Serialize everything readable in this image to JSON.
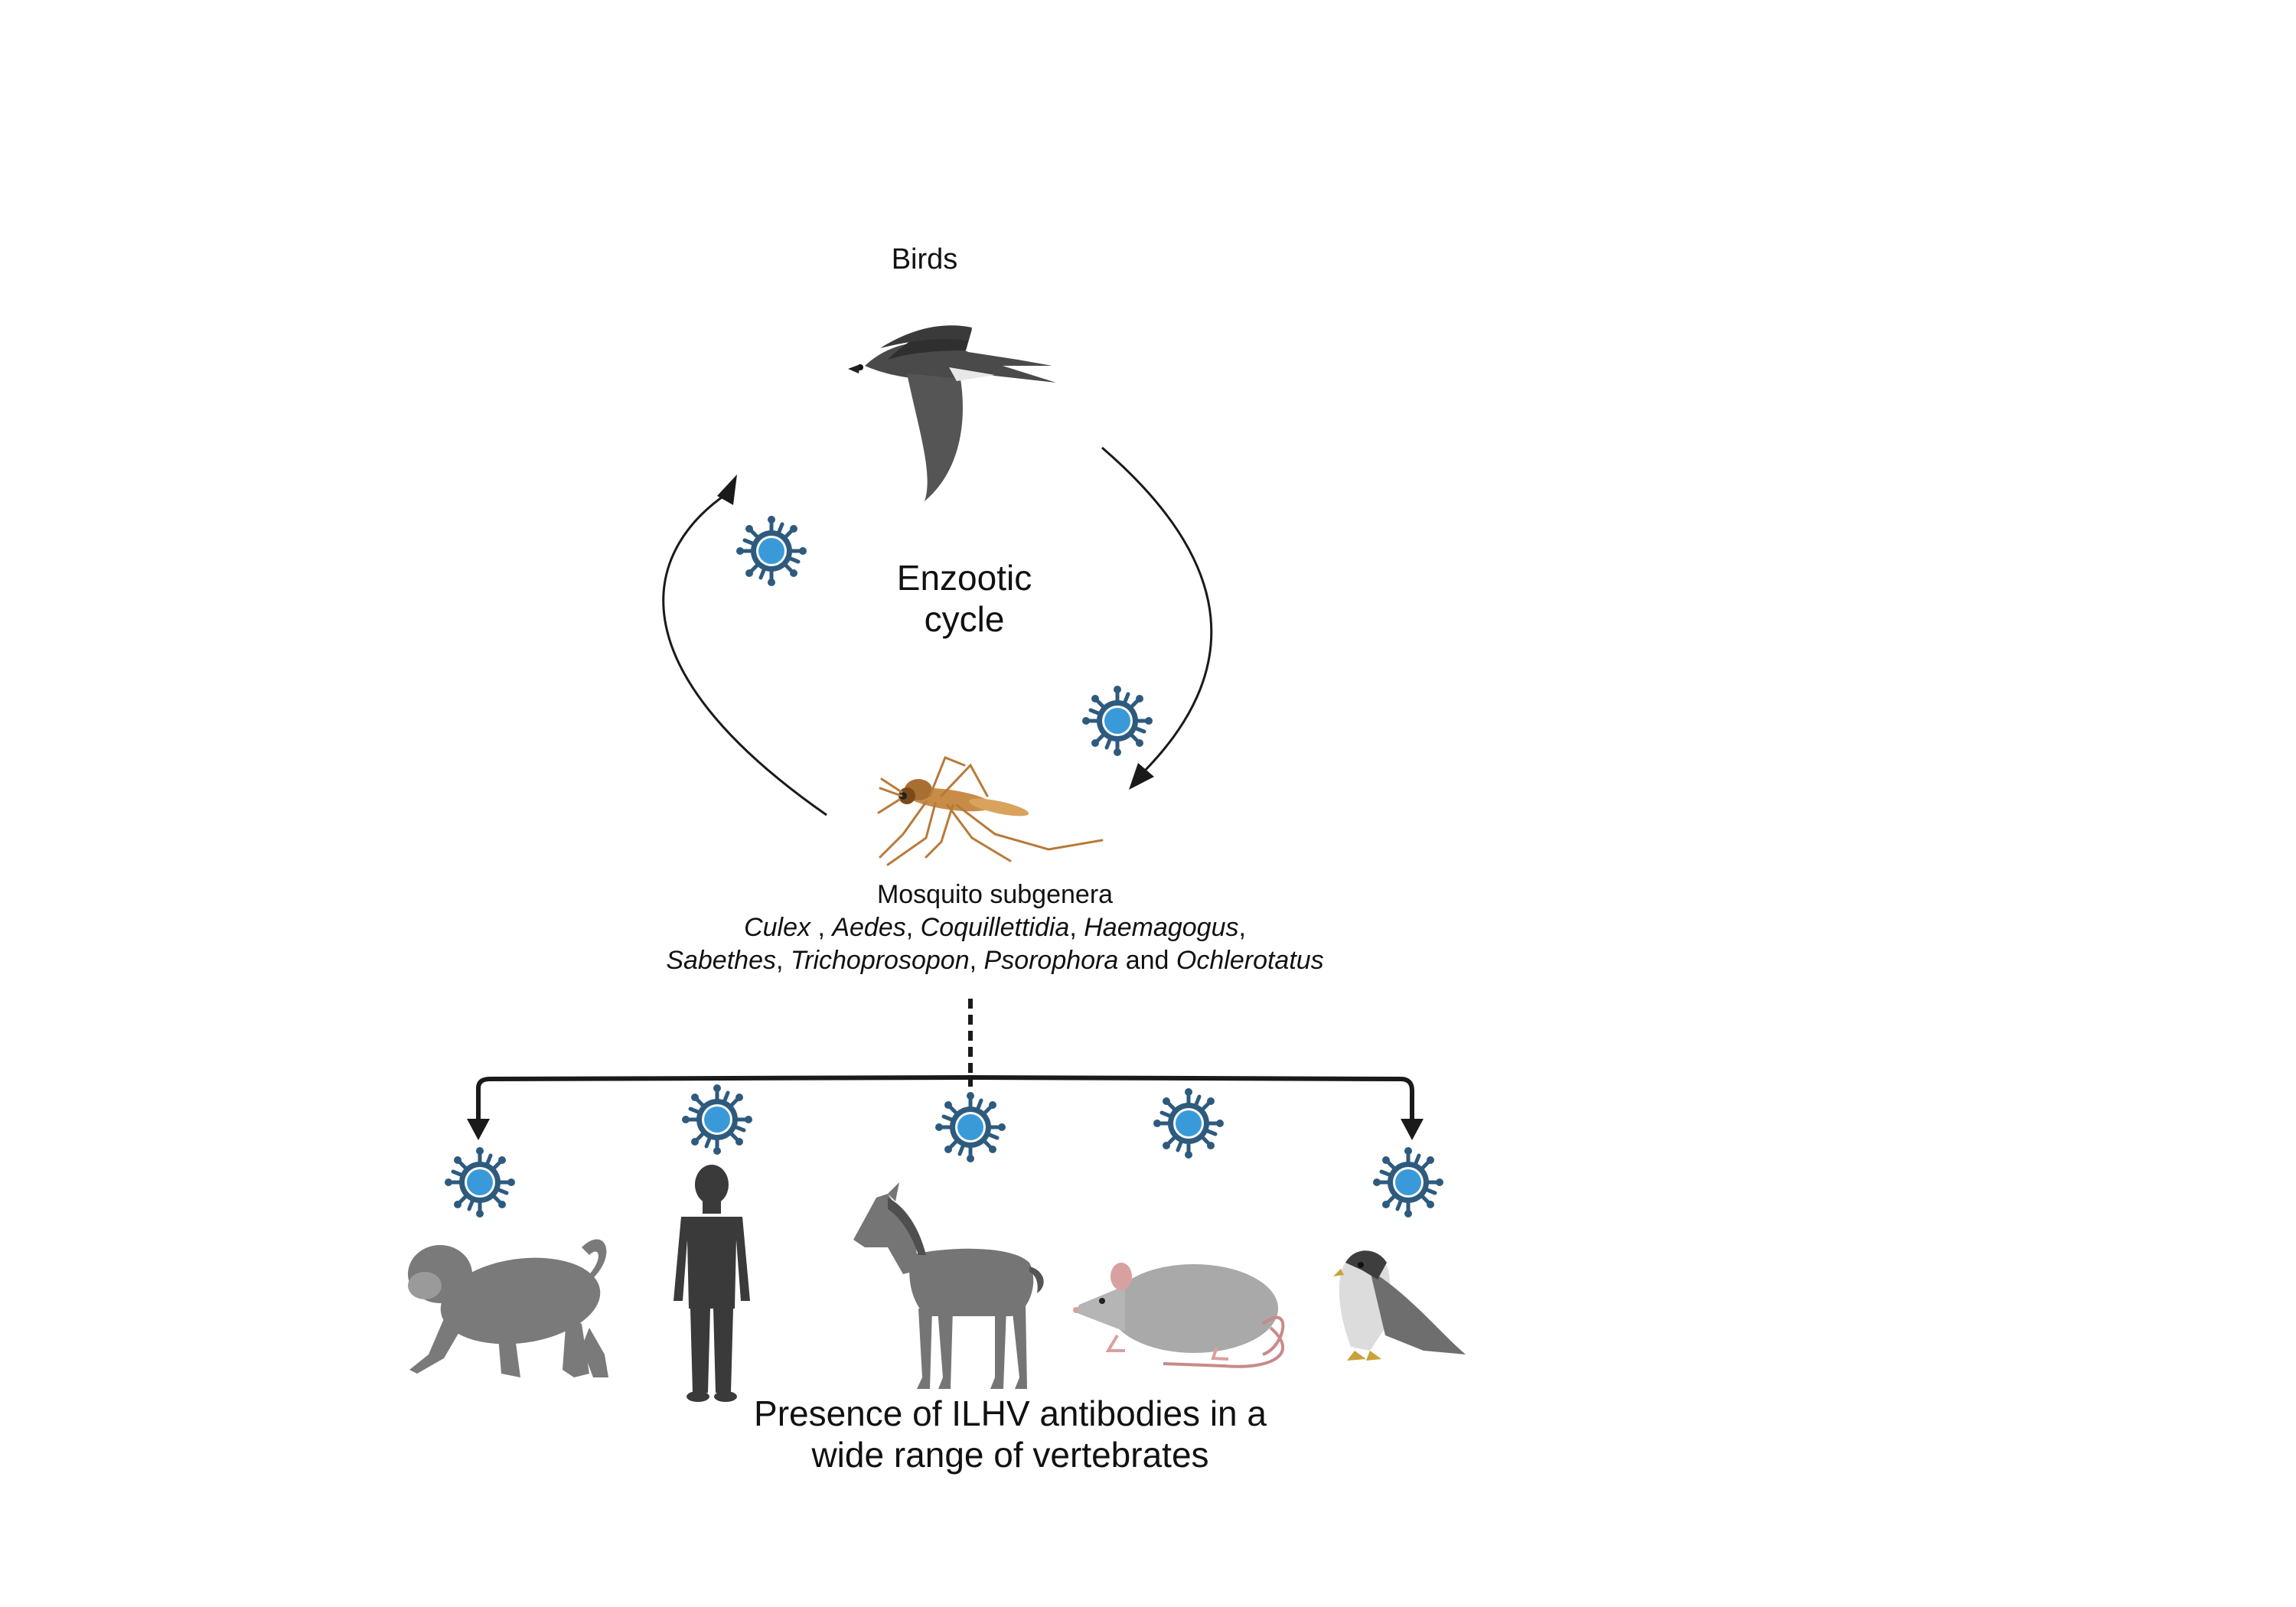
{
  "labels": {
    "birds": "Birds",
    "cycle_line1": "Enzootic",
    "cycle_line2": "cycle",
    "mosquito_title": "Mosquito subgenera",
    "genera_line1": [
      "Culex",
      " , ",
      "Aedes",
      ", ",
      "Coquillettidia",
      ", ",
      "Haemagogus",
      ","
    ],
    "genera_line2": [
      "Sabethes",
      ", ",
      "Trichoprosopon",
      ", ",
      "Psorophora",
      " and ",
      "Ochlerotatus"
    ],
    "bottom_line1": "Presence of ILHV antibodies in a",
    "bottom_line2": "wide range of vertebrates"
  },
  "icons": {
    "cycle_top": "bird-icon",
    "cycle_bottom": "mosquito-icon",
    "virus": "virus-icon",
    "vertebrates": [
      "monkey-icon",
      "human-icon",
      "horse-icon",
      "rat-icon",
      "falcon-icon"
    ]
  },
  "colors": {
    "virus_outer": "#2e5a7e",
    "virus_inner": "#3a9ad9",
    "arrow": "#1a1a1a",
    "bird": "#4a4a4a",
    "mosquito": "#b87a3a",
    "vertebrate": "#7a7a7a"
  }
}
